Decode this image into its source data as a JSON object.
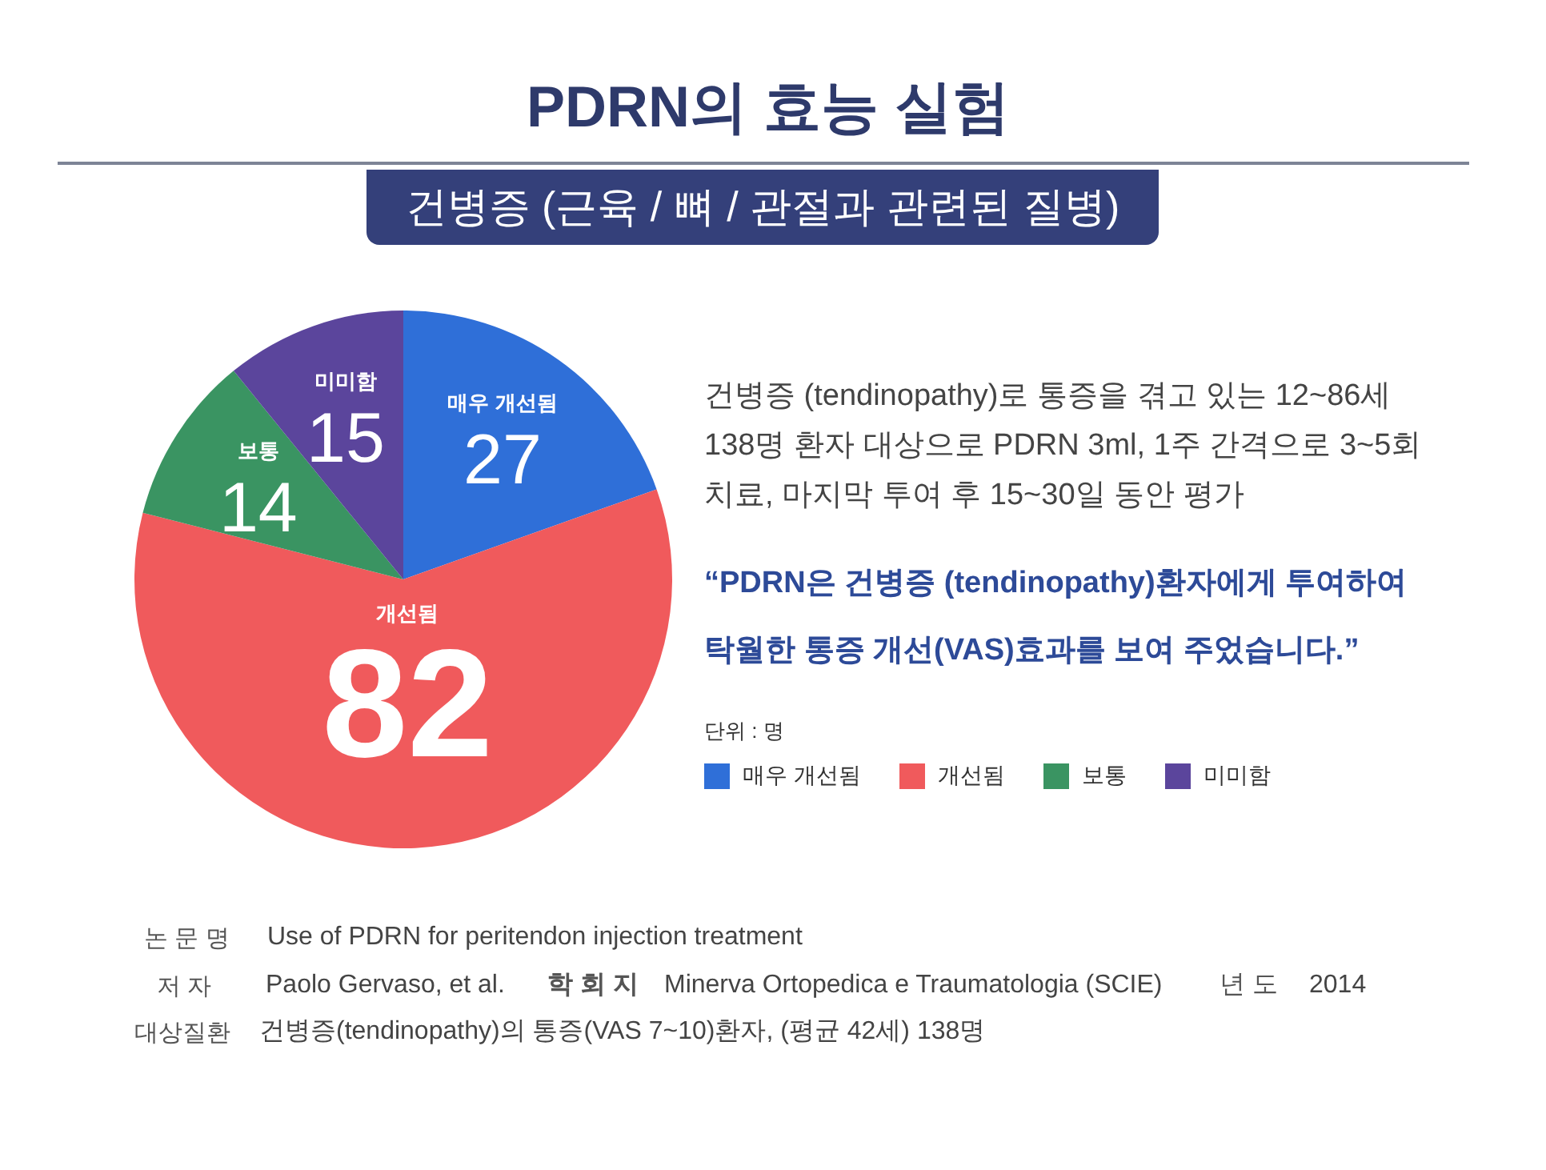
{
  "chart_data": {
    "type": "pie",
    "title": "PDRN의 효능 실험",
    "subtitle": "건병증 (근육 / 뼈 / 관절과 관련된 질병)",
    "categories": [
      "매우 개선됨",
      "개선됨",
      "보통",
      "미미함"
    ],
    "values": [
      27,
      82,
      14,
      15
    ],
    "colors": [
      "#2f6fd8",
      "#f05a5c",
      "#3a9462",
      "#5b459c"
    ],
    "data_labels": true,
    "legend": "right",
    "annotations": [
      "건병증 (tendinopathy)로 통증을 겪고 있는 12~86세\n138명 환자 대상으로 PDRN 3ml, 1주 간격으로 3~5회\n치료, 마지막 투여 후 15~30일 동안 평가",
      "“PDRN은 건병증 (tendinopathy)환자에게 투여하여\n탁월한 통증 개선(VAS)효과를 보여 주었습니다.”",
      "단위 : 명",
      "논 문 명",
      "Use of PDRN for peritendon injection treatment",
      "저 자",
      "Paolo Gervaso, et al.",
      "학 회 지",
      "Minerva Ortopedica e Traumatologia (SCIE)",
      "년 도",
      "2014",
      "대상질환",
      "건병증(tendinopathy)의 통증(VAS 7~10)환자, (평균 42세) 138명"
    ]
  }
}
